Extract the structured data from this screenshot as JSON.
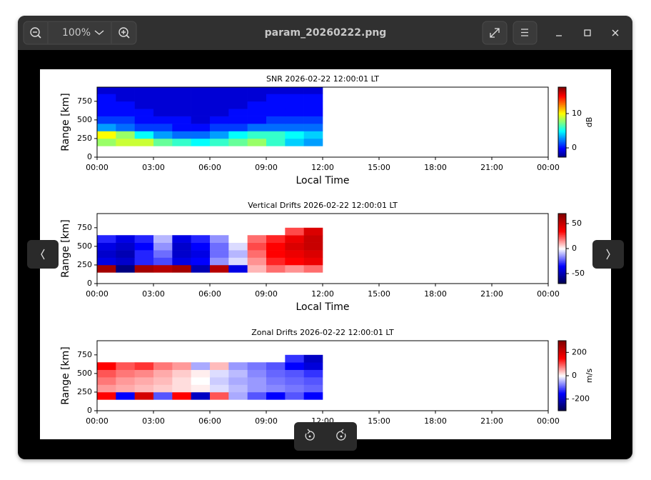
{
  "window": {
    "title": "param_20260222.png",
    "zoom": "100%"
  },
  "chart_data": [
    {
      "type": "heatmap",
      "title": "SNR 2026-02-22 12:00:01 LT",
      "xlabel": "Local Time",
      "ylabel": "Range [km]",
      "xlim": [
        0,
        24
      ],
      "xticks": [
        {
          "value": 0,
          "label": "00:00"
        },
        {
          "value": 3,
          "label": "03:00"
        },
        {
          "value": 6,
          "label": "06:00"
        },
        {
          "value": 9,
          "label": "09:00"
        },
        {
          "value": 12,
          "label": "12:00"
        },
        {
          "value": 15,
          "label": "15:00"
        },
        {
          "value": 18,
          "label": "18:00"
        },
        {
          "value": 21,
          "label": "21:00"
        },
        {
          "value": 24,
          "label": "00:00"
        }
      ],
      "ylim": [
        0,
        940
      ],
      "yticks": [
        0,
        250,
        500,
        750
      ],
      "x_edges": [
        0,
        1,
        2,
        3,
        4,
        5,
        6,
        7,
        8,
        9,
        10,
        11,
        12
      ],
      "y_edges": [
        150,
        250,
        350,
        450,
        550,
        650,
        750,
        850,
        940
      ],
      "values": [
        [
          8,
          9,
          9,
          7,
          6,
          5,
          6,
          7,
          8,
          6,
          4,
          3
        ],
        [
          10,
          8,
          5,
          3,
          2,
          2,
          3,
          5,
          6,
          6,
          5,
          4
        ],
        [
          3,
          2,
          1,
          1,
          0,
          0,
          1,
          1,
          2,
          2,
          2,
          2
        ],
        [
          1,
          1,
          0,
          0,
          0,
          -1,
          0,
          0,
          0,
          1,
          1,
          1
        ],
        [
          0,
          0,
          0,
          -1,
          -1,
          -1,
          -1,
          0,
          0,
          0,
          0,
          0
        ],
        [
          0,
          0,
          -1,
          -1,
          -1,
          -1,
          -1,
          -1,
          0,
          0,
          0,
          0
        ],
        [
          0,
          -1,
          -1,
          -1,
          -1,
          -1,
          -1,
          -1,
          -1,
          0,
          0,
          0
        ],
        [
          -1,
          -1,
          -1,
          -1,
          -1,
          -1,
          -1,
          -1,
          -1,
          -1,
          -1,
          -1
        ]
      ],
      "colormap": "jet",
      "clim": [
        -2.7,
        17.7
      ],
      "cticks": [
        0,
        10
      ],
      "clabel": "dB"
    },
    {
      "type": "heatmap",
      "title": "Vertical Drifts 2026-02-22 12:00:01 LT",
      "xlabel": "Local Time",
      "ylabel": "Range [km]",
      "xlim": [
        0,
        24
      ],
      "xticks": [
        {
          "value": 0,
          "label": "00:00"
        },
        {
          "value": 3,
          "label": "03:00"
        },
        {
          "value": 6,
          "label": "06:00"
        },
        {
          "value": 9,
          "label": "09:00"
        },
        {
          "value": 12,
          "label": "12:00"
        },
        {
          "value": 15,
          "label": "15:00"
        },
        {
          "value": 18,
          "label": "18:00"
        },
        {
          "value": 21,
          "label": "21:00"
        },
        {
          "value": 24,
          "label": "00:00"
        }
      ],
      "ylim": [
        0,
        940
      ],
      "yticks": [
        0,
        250,
        500,
        750
      ],
      "x_edges": [
        0,
        1,
        2,
        3,
        4,
        5,
        6,
        7,
        8,
        9,
        10,
        11,
        12
      ],
      "y_edges": [
        150,
        250,
        350,
        450,
        550,
        650,
        750
      ],
      "values": [
        [
          60,
          -60,
          60,
          55,
          60,
          -50,
          55,
          -40,
          10,
          20,
          15,
          20
        ],
        [
          -40,
          -45,
          -30,
          -25,
          -40,
          -35,
          -15,
          -5,
          15,
          30,
          35,
          40
        ],
        [
          -45,
          -50,
          -30,
          -20,
          -45,
          -40,
          -20,
          -10,
          20,
          35,
          40,
          45
        ],
        [
          -40,
          -45,
          -35,
          -15,
          -45,
          -35,
          -20,
          -5,
          25,
          35,
          45,
          50
        ],
        [
          -30,
          -40,
          -30,
          -10,
          -40,
          -30,
          -15,
          0,
          20,
          30,
          40,
          50
        ],
        [
          null,
          null,
          null,
          null,
          null,
          null,
          null,
          null,
          null,
          null,
          25,
          45
        ]
      ],
      "colormap": "seismic",
      "clim": [
        -70,
        70
      ],
      "cticks": [
        50,
        0,
        -50
      ]
    },
    {
      "type": "heatmap",
      "title": "Zonal Drifts 2026-02-22 12:00:01 LT",
      "ylabel": "Range [km]",
      "xlim": [
        0,
        24
      ],
      "xticks": [
        {
          "value": 0,
          "label": "00:00"
        },
        {
          "value": 3,
          "label": "03:00"
        },
        {
          "value": 6,
          "label": "06:00"
        },
        {
          "value": 9,
          "label": "09:00"
        },
        {
          "value": 12,
          "label": "12:00"
        },
        {
          "value": 15,
          "label": "15:00"
        },
        {
          "value": 18,
          "label": "18:00"
        },
        {
          "value": 21,
          "label": "21:00"
        },
        {
          "value": 24,
          "label": "00:00"
        }
      ],
      "ylim": [
        0,
        940
      ],
      "yticks": [
        0,
        250,
        500,
        750
      ],
      "x_edges": [
        0,
        1,
        2,
        3,
        4,
        5,
        6,
        7,
        8,
        9,
        10,
        11,
        12
      ],
      "y_edges": [
        150,
        250,
        350,
        450,
        550,
        650,
        750
      ],
      "values": [
        [
          150,
          -150,
          200,
          -100,
          150,
          -200,
          100,
          -50,
          -100,
          -150,
          -100,
          -150
        ],
        [
          60,
          50,
          40,
          30,
          20,
          10,
          -20,
          -40,
          -60,
          -70,
          -80,
          -90
        ],
        [
          80,
          60,
          50,
          40,
          20,
          0,
          -30,
          -50,
          -60,
          -80,
          -90,
          -100
        ],
        [
          100,
          80,
          70,
          50,
          30,
          10,
          -20,
          -40,
          -70,
          -90,
          -100,
          -120
        ],
        [
          150,
          100,
          120,
          80,
          60,
          -50,
          40,
          -60,
          -80,
          -100,
          -150,
          -180
        ],
        [
          null,
          null,
          null,
          null,
          null,
          null,
          null,
          null,
          null,
          null,
          -120,
          -200
        ]
      ],
      "colormap": "seismic",
      "clim": [
        -300,
        300
      ],
      "cticks": [
        200,
        0,
        -200
      ],
      "clabel": "m/s"
    }
  ]
}
